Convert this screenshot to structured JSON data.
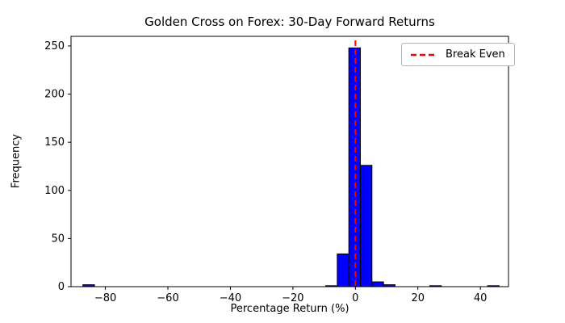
{
  "chart_data": {
    "type": "bar",
    "subtype": "histogram",
    "title": "Golden Cross on Forex: 30-Day Forward Returns",
    "xlabel": "Percentage Return (%)",
    "ylabel": "Frequency",
    "xlim": [
      -91,
      49
    ],
    "ylim": [
      0,
      260
    ],
    "xticks": [
      -80,
      -60,
      -40,
      -20,
      0,
      20,
      40
    ],
    "yticks": [
      0,
      50,
      100,
      150,
      200,
      250
    ],
    "grid": false,
    "bar_color": "#0000ff",
    "bar_edge_color": "#000000",
    "bins": [
      {
        "x0": -87.2,
        "x1": -83.5,
        "count": 2
      },
      {
        "x0": -9.5,
        "x1": -5.8,
        "count": 1
      },
      {
        "x0": -5.8,
        "x1": -2.1,
        "count": 34
      },
      {
        "x0": -2.1,
        "x1": 1.6,
        "count": 248
      },
      {
        "x0": 1.6,
        "x1": 5.3,
        "count": 126
      },
      {
        "x0": 5.3,
        "x1": 9.0,
        "count": 5
      },
      {
        "x0": 9.0,
        "x1": 12.7,
        "count": 2
      },
      {
        "x0": 23.8,
        "x1": 27.5,
        "count": 1
      },
      {
        "x0": 42.3,
        "x1": 46.0,
        "count": 1
      }
    ],
    "vline": {
      "x": 0,
      "color": "#ff0000",
      "style": "dashed",
      "label": "Break Even"
    },
    "legend_position": "upper right"
  }
}
